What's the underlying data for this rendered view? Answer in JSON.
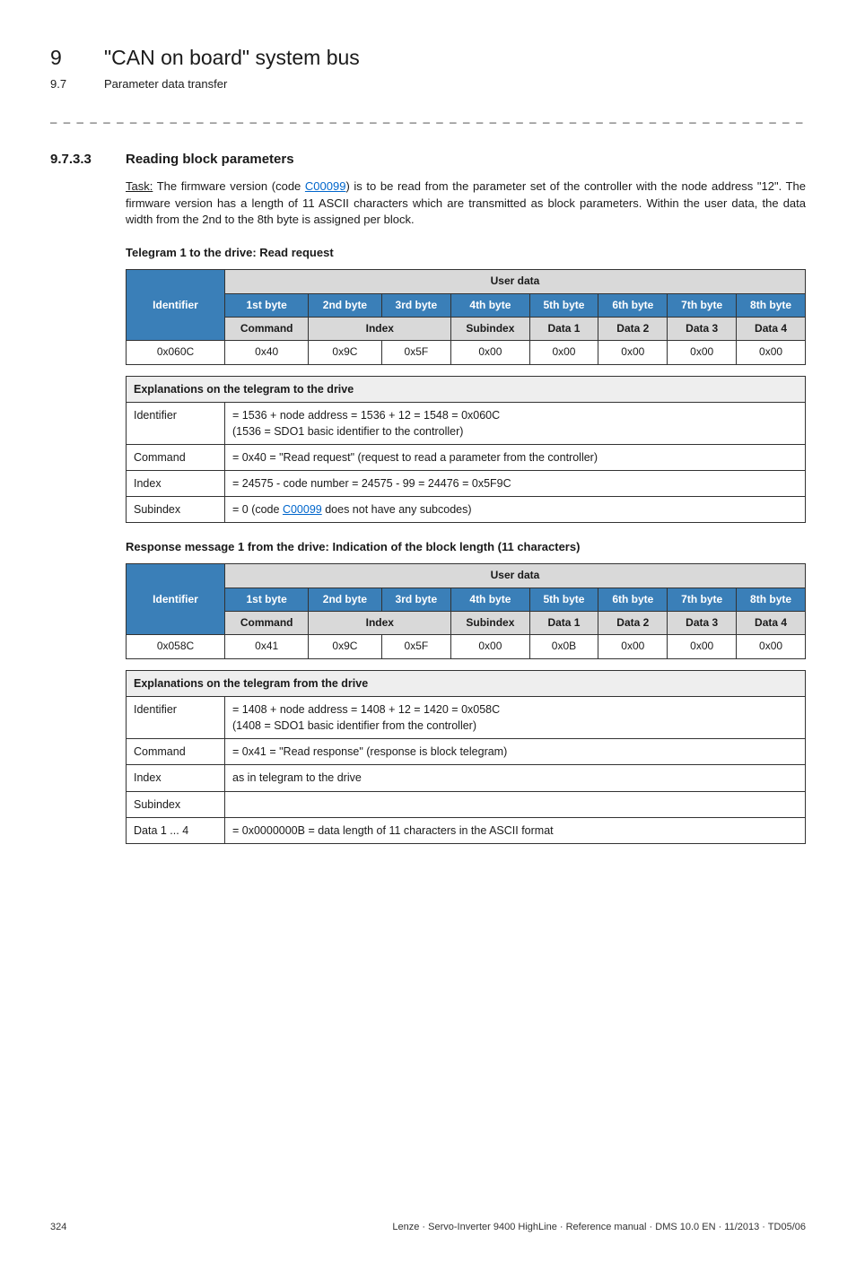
{
  "header": {
    "chapter_num": "9",
    "chapter_title": "\"CAN on board\" system bus",
    "section_num": "9.7",
    "section_title": "Parameter data transfer",
    "dashline": "_ _ _ _ _ _ _ _ _ _ _ _ _ _ _ _ _ _ _ _ _ _ _ _ _ _ _ _ _ _ _ _ _ _ _ _ _ _ _ _ _ _ _ _ _ _ _ _ _ _ _ _ _ _ _ _ _ _ _ _ _ _ _ _"
  },
  "section": {
    "num": "9.7.3.3",
    "title": "Reading block parameters"
  },
  "intro": {
    "task_prefix": "Task:",
    "sentence_a": " The firmware version (code ",
    "link": "C00099",
    "sentence_b": ") is to be read from the parameter set of the controller with the node address \"12\". The firmware version has a length of 11 ASCII characters which are transmitted as block parameters. Within the user data, the data width from the 2nd to the 8th byte is assigned per block."
  },
  "tele_labels": {
    "identifier": "Identifier",
    "user_data": "User data",
    "bytes": [
      "1st byte",
      "2nd byte",
      "3rd byte",
      "4th byte",
      "5th byte",
      "6th byte",
      "7th byte",
      "8th byte"
    ],
    "row2": [
      "Command",
      "Index",
      "Subindex",
      "Data 1",
      "Data 2",
      "Data 3",
      "Data 4"
    ]
  },
  "telegram1": {
    "caption": "Telegram 1 to the drive: Read request",
    "row": [
      "0x060C",
      "0x40",
      "0x9C",
      "0x5F",
      "0x00",
      "0x00",
      "0x00",
      "0x00",
      "0x00"
    ]
  },
  "expl_to": {
    "caption": "Explanations on the telegram to the drive",
    "rows": [
      {
        "label": "Identifier",
        "text": "= 1536 + node address = 1536 + 12 = 1548 = 0x060C\n(1536 = SDO1 basic identifier to the controller)"
      },
      {
        "label": "Command",
        "text": "= 0x40 = \"Read request\" (request to read a parameter from the controller)"
      },
      {
        "label": "Index",
        "text": "= 24575 - code number = 24575 - 99 = 24476 = 0x5F9C"
      },
      {
        "label": "Subindex",
        "text_prefix": "= 0 (code ",
        "link": "C00099",
        "text_suffix": "  does not have any subcodes)"
      }
    ]
  },
  "response1": {
    "caption": "Response message 1 from the drive: Indication of the block length (11 characters)",
    "row": [
      "0x058C",
      "0x41",
      "0x9C",
      "0x5F",
      "0x00",
      "0x0B",
      "0x00",
      "0x00",
      "0x00"
    ]
  },
  "expl_from": {
    "caption": "Explanations on the telegram from the drive",
    "rows": [
      {
        "label": "Identifier",
        "text": "= 1408 + node address = 1408 + 12 = 1420 = 0x058C\n(1408 = SDO1 basic identifier from the controller)"
      },
      {
        "label": "Command",
        "text": "= 0x41 = \"Read response\" (response is block telegram)"
      },
      {
        "label": "Index",
        "text": "as in telegram to the drive"
      },
      {
        "label": "Subindex",
        "text": ""
      },
      {
        "label": "Data 1 ... 4",
        "text": "= 0x0000000B = data length of 11 characters in the ASCII format"
      }
    ]
  },
  "footer": {
    "page": "324",
    "right": "Lenze · Servo-Inverter 9400 HighLine · Reference manual · DMS 10.0 EN · 11/2013 · TD05/06"
  }
}
